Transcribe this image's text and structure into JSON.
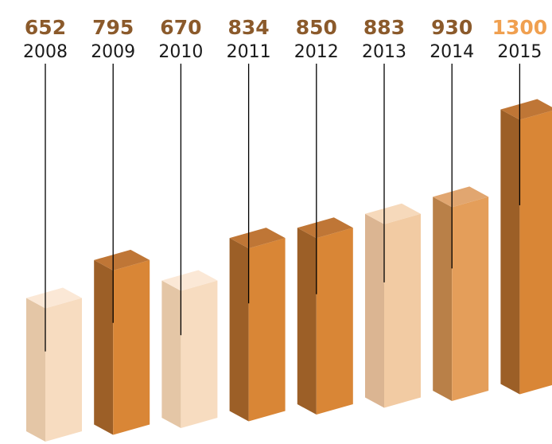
{
  "chart_data": {
    "type": "bar",
    "categories": [
      "2008",
      "2009",
      "2010",
      "2011",
      "2012",
      "2013",
      "2014",
      "2015"
    ],
    "values": [
      652,
      795,
      670,
      834,
      850,
      883,
      930,
      1300
    ],
    "title": "",
    "xlabel": "",
    "ylabel": "",
    "value_label_color": "#8b5a2b",
    "highlight_value_label_color": "#f0a050",
    "bar_colors": [
      {
        "front": "#f7dcc0",
        "side": "#e4c6a6",
        "top": "#fbe8d6"
      },
      {
        "front": "#d98636",
        "side": "#9c5f27",
        "top": "#bf7636"
      },
      {
        "front": "#f7dcc0",
        "side": "#e4c6a6",
        "top": "#fbe8d6"
      },
      {
        "front": "#d98636",
        "side": "#9c5f27",
        "top": "#bf7636"
      },
      {
        "front": "#d98636",
        "side": "#9c5f27",
        "top": "#bf7636"
      },
      {
        "front": "#f2cba3",
        "side": "#dbb592",
        "top": "#f6d9bb"
      },
      {
        "front": "#e49e5a",
        "side": "#b98048",
        "top": "#e1a670"
      },
      {
        "front": "#d98636",
        "side": "#9c5f27",
        "top": "#bf7636"
      }
    ]
  }
}
